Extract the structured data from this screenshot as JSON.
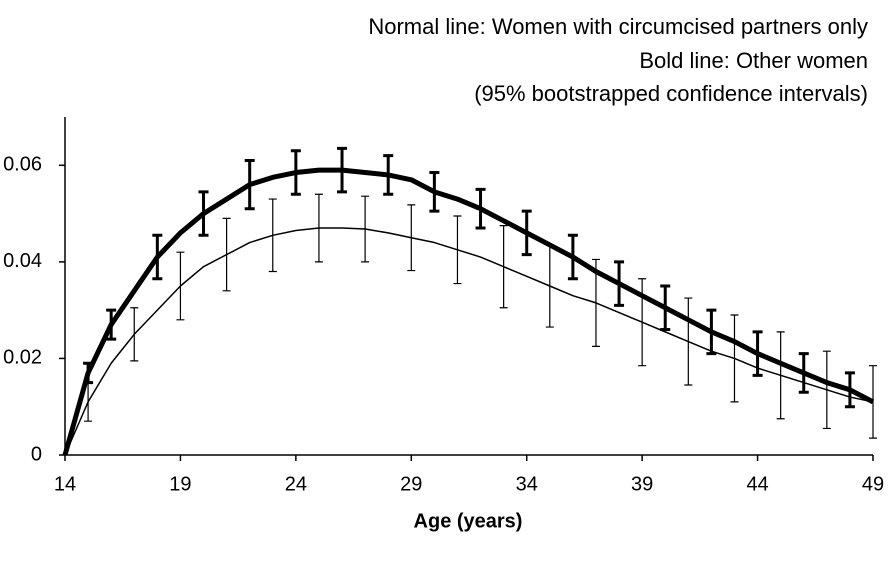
{
  "chart_data": {
    "type": "line",
    "annotations": [
      "Normal line: Women with circumcised partners only",
      "Bold line: Other women",
      "(95% bootstrapped confidence intervals)"
    ],
    "x_label": "Age (years)",
    "x": [
      14,
      15,
      16,
      17,
      18,
      19,
      20,
      21,
      22,
      23,
      24,
      25,
      26,
      27,
      28,
      29,
      30,
      31,
      32,
      33,
      34,
      35,
      36,
      37,
      38,
      39,
      40,
      41,
      42,
      43,
      44,
      45,
      46,
      47,
      48,
      49
    ],
    "xlim": [
      14,
      49
    ],
    "xticks": [
      14,
      19,
      24,
      29,
      34,
      39,
      44,
      49
    ],
    "ylim": [
      0,
      0.07
    ],
    "yticks": [
      0,
      {
        "value": 0.02,
        "label": "0.02"
      },
      {
        "value": 0.04,
        "label": "0.04"
      },
      {
        "value": 0.06,
        "label": "0.06"
      }
    ],
    "series": [
      {
        "color": "#000000",
        "line_width": 1.5,
        "values": [
          0,
          0.011,
          0.019,
          0.025,
          0.03,
          0.035,
          0.039,
          0.0415,
          0.044,
          0.0455,
          0.0465,
          0.047,
          0.047,
          0.0468,
          0.046,
          0.045,
          0.044,
          0.0425,
          0.041,
          0.039,
          0.037,
          0.035,
          0.033,
          0.0315,
          0.0295,
          0.0275,
          0.0255,
          0.0235,
          0.0215,
          0.02,
          0.018,
          0.0165,
          0.015,
          0.0135,
          0.012,
          0.011
        ],
        "errors": [
          null,
          0.004,
          null,
          0.0055,
          null,
          0.007,
          null,
          0.0075,
          null,
          0.0075,
          null,
          0.007,
          null,
          0.0068,
          null,
          0.0068,
          null,
          0.007,
          null,
          0.0085,
          null,
          0.0085,
          null,
          0.009,
          null,
          0.009,
          null,
          0.009,
          null,
          0.009,
          null,
          0.009,
          null,
          0.008,
          null,
          0.0075
        ]
      },
      {
        "color": "#000000",
        "line_width": 5,
        "values": [
          0,
          0.017,
          0.027,
          0.034,
          0.041,
          0.046,
          0.05,
          0.053,
          0.056,
          0.0575,
          0.0585,
          0.059,
          0.059,
          0.0585,
          0.058,
          0.057,
          0.0545,
          0.053,
          0.051,
          0.0485,
          0.046,
          0.0435,
          0.041,
          0.038,
          0.0355,
          0.033,
          0.0305,
          0.028,
          0.0255,
          0.0235,
          0.021,
          0.019,
          0.017,
          0.015,
          0.0135,
          0.011
        ],
        "errors": [
          null,
          0.002,
          0.003,
          null,
          0.0045,
          null,
          0.0045,
          null,
          0.005,
          null,
          0.0045,
          null,
          0.0045,
          null,
          0.004,
          null,
          0.004,
          null,
          0.004,
          null,
          0.0045,
          null,
          0.0045,
          null,
          0.0045,
          null,
          0.0045,
          null,
          0.0045,
          null,
          0.0045,
          null,
          0.004,
          null,
          0.0035,
          null
        ]
      }
    ]
  }
}
